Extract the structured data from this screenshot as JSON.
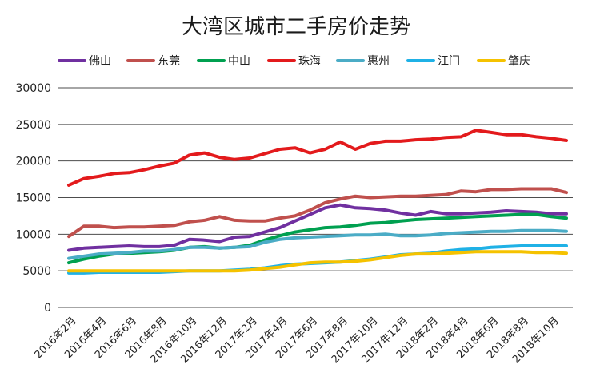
{
  "chart_data": {
    "type": "line",
    "title": "大湾区城市二手房价走势",
    "xlabel": "",
    "ylabel": "",
    "ylim": [
      0,
      30000
    ],
    "yticks": [
      "0",
      "5000",
      "10000",
      "15000",
      "20000",
      "25000",
      "30000"
    ],
    "grid": true,
    "legend_position": "top",
    "x": [
      "2016年2月",
      "2016年3月",
      "2016年4月",
      "2016年5月",
      "2016年6月",
      "2016年7月",
      "2016年8月",
      "2016年9月",
      "2016年10月",
      "2016年11月",
      "2016年12月",
      "2017年1月",
      "2017年2月",
      "2017年3月",
      "2017年4月",
      "2017年5月",
      "2017年6月",
      "2017年7月",
      "2017年8月",
      "2017年9月",
      "2017年10月",
      "2017年11月",
      "2017年12月",
      "2018年1月",
      "2018年2月",
      "2018年3月",
      "2018年4月",
      "2018年5月",
      "2018年6月",
      "2018年7月",
      "2018年8月",
      "2018年9月",
      "2018年10月",
      "2018年11月"
    ],
    "x_tick_labels": [
      "2016年2月",
      "2016年4月",
      "2016年6月",
      "2016年8月",
      "2016年10月",
      "2016年12月",
      "2017年2月",
      "2017年4月",
      "2017年6月",
      "2017年8月",
      "2017年10月",
      "2017年12月",
      "2018年2月",
      "2018年4月",
      "2018年6月",
      "2018年8月",
      "2018年10月"
    ],
    "series": [
      {
        "name": "佛山",
        "color": "#7030a0",
        "values": [
          7800,
          8100,
          8200,
          8300,
          8400,
          8300,
          8300,
          8500,
          9300,
          9200,
          9000,
          9600,
          9700,
          10300,
          10900,
          11800,
          12700,
          13600,
          14000,
          13600,
          13500,
          13300,
          12900,
          12600,
          13100,
          12800,
          12800,
          12900,
          13000,
          13200,
          13100,
          13000,
          12800,
          12800
        ]
      },
      {
        "name": "东莞",
        "color": "#c0504d",
        "values": [
          9700,
          11100,
          11100,
          10900,
          11000,
          11000,
          11100,
          11200,
          11700,
          11900,
          12400,
          11900,
          11800,
          11800,
          12200,
          12500,
          13300,
          14300,
          14800,
          15200,
          15000,
          15100,
          15200,
          15200,
          15300,
          15400,
          15900,
          15800,
          16100,
          16100,
          16200,
          16200,
          16200,
          15700
        ]
      },
      {
        "name": "中山",
        "color": "#00a050",
        "values": [
          6100,
          6600,
          7000,
          7300,
          7400,
          7500,
          7600,
          7800,
          8200,
          8300,
          8100,
          8200,
          8500,
          9200,
          9800,
          10300,
          10600,
          10900,
          11000,
          11200,
          11500,
          11600,
          11800,
          12000,
          12100,
          12200,
          12300,
          12400,
          12500,
          12600,
          12700,
          12700,
          12400,
          12200
        ]
      },
      {
        "name": "珠海",
        "color": "#e31a1c",
        "values": [
          16700,
          17600,
          17900,
          18300,
          18400,
          18800,
          19300,
          19700,
          20800,
          21100,
          20500,
          20200,
          20400,
          21000,
          21600,
          21800,
          21100,
          21600,
          22600,
          21600,
          22400,
          22700,
          22700,
          22900,
          23000,
          23200,
          23300,
          24200,
          23900,
          23600,
          23600,
          23300,
          23100,
          22800
        ]
      },
      {
        "name": "惠州",
        "color": "#4bacc6",
        "values": [
          6700,
          7000,
          7300,
          7400,
          7500,
          7700,
          7700,
          7900,
          8200,
          8200,
          8100,
          8200,
          8300,
          8900,
          9300,
          9500,
          9600,
          9700,
          9800,
          9900,
          9900,
          10000,
          9800,
          9800,
          9900,
          10100,
          10200,
          10300,
          10400,
          10400,
          10500,
          10500,
          10500,
          10400
        ]
      },
      {
        "name": "江门",
        "color": "#1fb1e6",
        "values": [
          4700,
          4700,
          4800,
          4800,
          4800,
          4800,
          4800,
          4900,
          5000,
          5000,
          5000,
          5100,
          5200,
          5400,
          5700,
          5900,
          6000,
          6100,
          6200,
          6400,
          6600,
          6900,
          7200,
          7300,
          7400,
          7700,
          7900,
          8000,
          8200,
          8300,
          8400,
          8400,
          8400,
          8400
        ]
      },
      {
        "name": "肇庆",
        "color": "#f5c200",
        "values": [
          5000,
          5000,
          5000,
          5000,
          5000,
          5000,
          5000,
          5000,
          5000,
          5000,
          5000,
          5000,
          5100,
          5300,
          5500,
          5800,
          6100,
          6200,
          6200,
          6300,
          6500,
          6800,
          7100,
          7300,
          7300,
          7400,
          7500,
          7600,
          7600,
          7600,
          7600,
          7500,
          7500,
          7400
        ]
      }
    ]
  }
}
